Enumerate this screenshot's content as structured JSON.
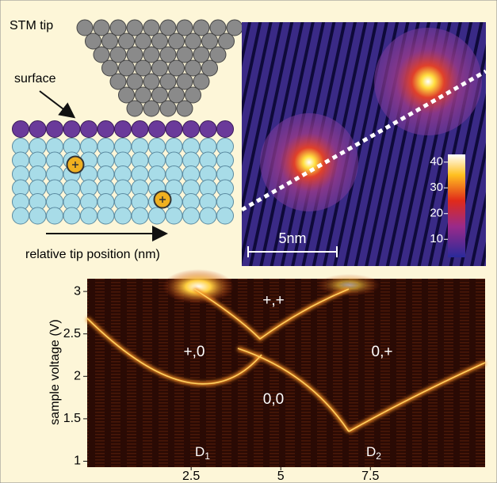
{
  "schematic": {
    "tip_label": "STM tip",
    "surface_label": "surface",
    "axis_label": "relative tip position (nm)"
  },
  "stm_image": {
    "scale_bar": "5nm",
    "colorbar": {
      "range": [
        3,
        43
      ],
      "ticks": [
        10,
        20,
        30,
        40
      ]
    }
  },
  "plot": {
    "ylabel": "sample voltage (V)",
    "xlim": [
      -0.4,
      10.7
    ],
    "ylim": [
      0.93,
      3.15
    ],
    "xticks": [
      2.5,
      5,
      7.5
    ],
    "yticks": [
      1,
      1.5,
      2,
      2.5,
      3
    ],
    "region_labels": [
      "+,+",
      "+,0",
      "0,+",
      "0,0"
    ],
    "defects": [
      {
        "letter": "D",
        "subscript": "1"
      },
      {
        "letter": "D",
        "subscript": "2"
      }
    ]
  }
}
